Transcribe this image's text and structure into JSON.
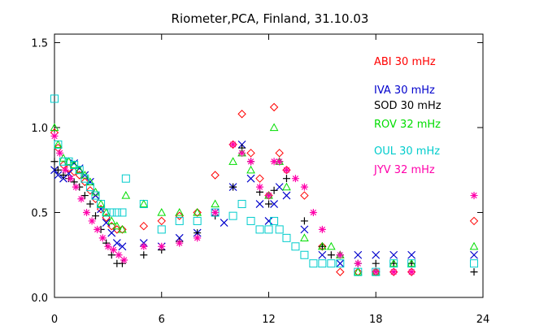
{
  "chart_data": {
    "type": "scatter",
    "title": "Riometer,PCA, Finland, 31.10.03",
    "xlabel": "",
    "ylabel": "",
    "xlim": [
      0,
      24
    ],
    "ylim": [
      0,
      1.55
    ],
    "x_ticks": [
      0,
      6,
      12,
      18,
      24
    ],
    "y_ticks": [
      0.0,
      0.5,
      1.0,
      1.5
    ],
    "x_tick_labels": [
      "0",
      "6",
      "12",
      "18",
      "24"
    ],
    "y_tick_labels": [
      "0.0",
      "0.5",
      "1.0",
      "1.5"
    ],
    "grid": false,
    "legend_position": "top-right",
    "series": [
      {
        "name": "ABI 30 mHz",
        "marker": "diamond",
        "color": "#ff0000",
        "x": [
          0,
          0.2,
          0.5,
          0.8,
          1.1,
          1.4,
          1.7,
          2.0,
          2.3,
          2.6,
          2.9,
          3.2,
          3.5,
          3.8,
          5,
          6,
          7,
          8,
          9,
          10,
          10.5,
          11,
          11.5,
          12,
          12.3,
          12.6,
          13,
          14,
          15,
          16,
          17,
          18,
          19,
          20,
          23.5
        ],
        "y": [
          0.97,
          0.88,
          0.78,
          0.76,
          0.74,
          0.72,
          0.68,
          0.63,
          0.58,
          0.52,
          0.47,
          0.42,
          0.4,
          0.4,
          0.42,
          0.45,
          0.48,
          0.5,
          0.72,
          0.9,
          1.08,
          0.85,
          0.7,
          0.6,
          1.12,
          0.85,
          0.75,
          0.6,
          0.3,
          0.15,
          0.15,
          0.15,
          0.15,
          0.15,
          0.45
        ]
      },
      {
        "name": "IVA 30 mHz",
        "marker": "x",
        "color": "#0000cc",
        "x": [
          0,
          0.2,
          0.5,
          0.8,
          1.1,
          1.4,
          1.7,
          2.0,
          2.3,
          2.6,
          2.9,
          3.2,
          3.5,
          3.8,
          5,
          6,
          7,
          8,
          9,
          9.5,
          10,
          10.5,
          11,
          11.5,
          12,
          12.3,
          12.6,
          13,
          14,
          15,
          16,
          17,
          18,
          19,
          20,
          23.5
        ],
        "y": [
          0.75,
          0.72,
          0.7,
          0.73,
          0.79,
          0.76,
          0.72,
          0.68,
          0.6,
          0.52,
          0.44,
          0.38,
          0.32,
          0.3,
          0.32,
          0.3,
          0.35,
          0.38,
          0.5,
          0.44,
          0.65,
          0.9,
          0.7,
          0.55,
          0.45,
          0.55,
          0.65,
          0.6,
          0.4,
          0.25,
          0.2,
          0.25,
          0.25,
          0.25,
          0.25,
          0.25
        ]
      },
      {
        "name": "SOD 30 mHz",
        "marker": "plus",
        "color": "#000000",
        "x": [
          0,
          0.2,
          0.5,
          0.8,
          1.1,
          1.4,
          1.7,
          2.0,
          2.3,
          2.6,
          2.9,
          3.2,
          3.5,
          3.8,
          5,
          6,
          7,
          8,
          9,
          10,
          10.5,
          11,
          11.5,
          12,
          12.3,
          12.6,
          13,
          14,
          15,
          15.5,
          16,
          17,
          18,
          19,
          20,
          23.5
        ],
        "y": [
          0.8,
          0.75,
          0.72,
          0.7,
          0.68,
          0.65,
          0.6,
          0.55,
          0.48,
          0.4,
          0.32,
          0.25,
          0.2,
          0.2,
          0.25,
          0.28,
          0.33,
          0.38,
          0.48,
          0.65,
          0.88,
          0.8,
          0.62,
          0.55,
          0.63,
          0.8,
          0.7,
          0.45,
          0.3,
          0.25,
          0.25,
          0.2,
          0.2,
          0.2,
          0.2,
          0.15
        ]
      },
      {
        "name": "ROV 32 mHz",
        "marker": "triangle",
        "color": "#00dd00",
        "x": [
          0,
          0.2,
          0.5,
          0.8,
          1.1,
          1.4,
          1.7,
          2.0,
          2.3,
          2.6,
          2.9,
          3.2,
          3.5,
          3.8,
          4,
          5,
          6,
          7,
          8,
          9,
          10,
          10.5,
          11,
          12,
          12.3,
          12.6,
          13,
          14,
          15,
          15.5,
          16,
          17,
          18,
          19,
          20,
          23.5
        ],
        "y": [
          1.0,
          0.9,
          0.82,
          0.8,
          0.78,
          0.75,
          0.72,
          0.68,
          0.62,
          0.55,
          0.5,
          0.45,
          0.42,
          0.4,
          0.6,
          0.55,
          0.5,
          0.5,
          0.5,
          0.55,
          0.8,
          0.85,
          0.75,
          0.6,
          1.0,
          0.8,
          0.65,
          0.35,
          0.3,
          0.3,
          0.25,
          0.15,
          0.15,
          0.2,
          0.2,
          0.3
        ]
      },
      {
        "name": "OUL 30 mHz",
        "marker": "square",
        "color": "#00cccc",
        "x": [
          0,
          0.2,
          0.5,
          0.8,
          1.1,
          1.4,
          1.7,
          2.0,
          2.3,
          2.6,
          2.9,
          3.2,
          3.5,
          3.8,
          4,
          5,
          6,
          7,
          8,
          9,
          10,
          10.5,
          11,
          11.5,
          12,
          12.3,
          12.6,
          13,
          13.5,
          14,
          14.5,
          15,
          15.5,
          16,
          17,
          18,
          19,
          20,
          23.5
        ],
        "y": [
          1.17,
          0.9,
          0.8,
          0.8,
          0.78,
          0.75,
          0.7,
          0.65,
          0.6,
          0.55,
          0.5,
          0.5,
          0.5,
          0.5,
          0.7,
          0.55,
          0.4,
          0.45,
          0.45,
          0.5,
          0.48,
          0.55,
          0.45,
          0.4,
          0.4,
          0.45,
          0.4,
          0.35,
          0.3,
          0.25,
          0.2,
          0.2,
          0.2,
          0.2,
          0.15,
          0.15,
          0.2,
          0.2,
          0.2
        ]
      },
      {
        "name": "JYV 32 mHz",
        "marker": "asterisk",
        "color": "#ff00aa",
        "x": [
          0,
          0.3,
          0.6,
          0.9,
          1.2,
          1.5,
          1.8,
          2.1,
          2.4,
          2.7,
          3.0,
          3.3,
          3.6,
          3.9,
          5,
          6,
          7,
          8,
          9,
          10,
          10.5,
          11,
          11.5,
          12,
          12.3,
          12.6,
          13,
          13.5,
          14,
          14.5,
          15,
          16,
          17,
          18,
          19,
          20,
          23.5
        ],
        "y": [
          0.95,
          0.85,
          0.75,
          0.7,
          0.65,
          0.58,
          0.5,
          0.45,
          0.4,
          0.35,
          0.3,
          0.28,
          0.25,
          0.22,
          0.3,
          0.3,
          0.32,
          0.35,
          0.5,
          0.9,
          0.85,
          0.8,
          0.65,
          0.6,
          0.8,
          0.8,
          0.75,
          0.7,
          0.65,
          0.5,
          0.4,
          0.25,
          0.2,
          0.15,
          0.15,
          0.15,
          0.6
        ]
      }
    ]
  }
}
